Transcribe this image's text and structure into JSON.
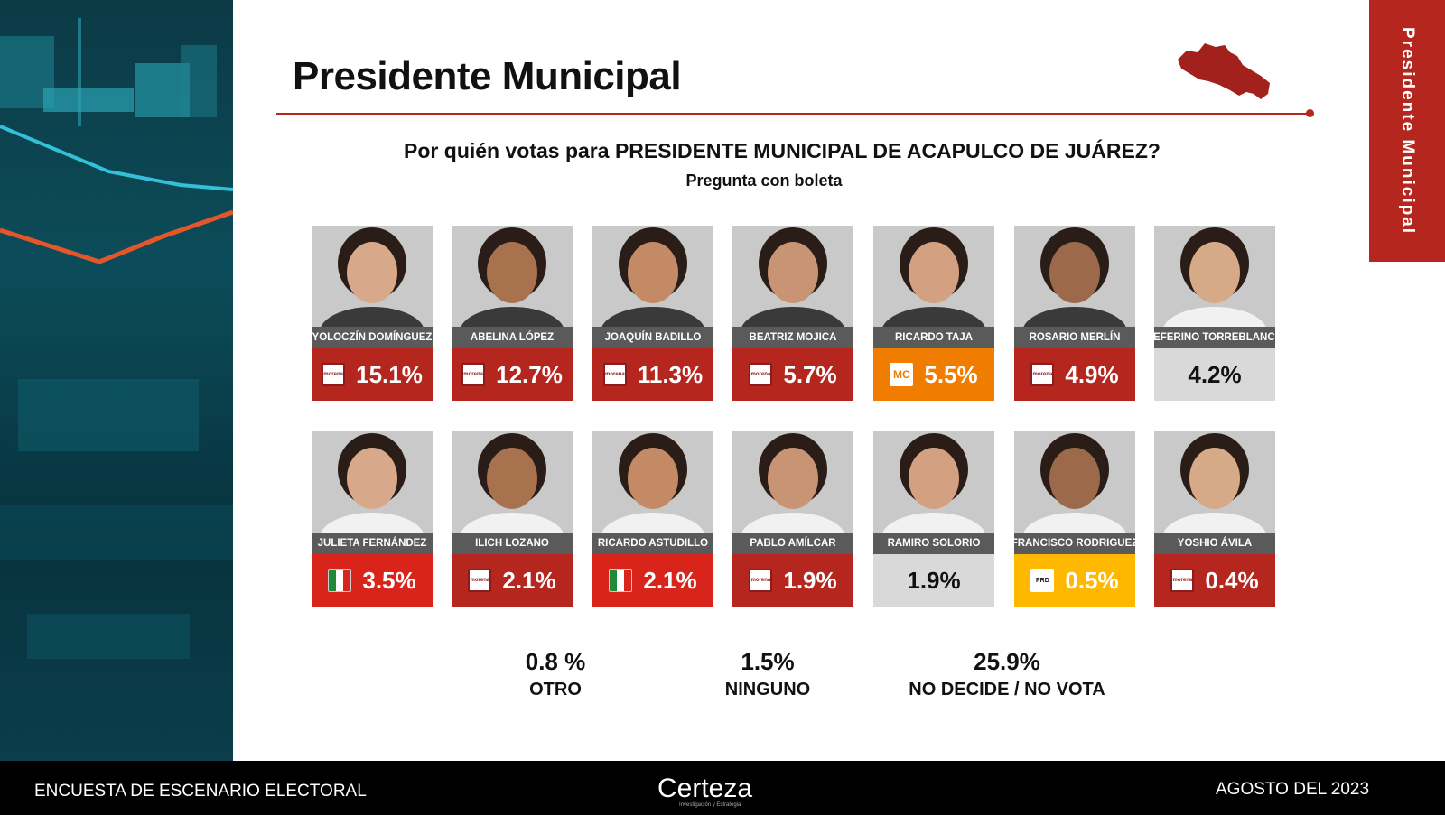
{
  "title": "Presidente Municipal",
  "side_tab": "Presidente Municipal",
  "question": "Por quién votas  para  PRESIDENTE MUNICIPAL DE ACAPULCO DE JUÁREZ?",
  "question_sub": "Pregunta con boleta",
  "colors": {
    "morena": "#b5261e",
    "pri": "#d9241c",
    "mc": "#f07d00",
    "prd": "#ffb800",
    "none": "#d9d9d9",
    "accent": "#b5261e"
  },
  "chart_data": {
    "type": "bar",
    "title": "Por quién votas  para  PRESIDENTE MUNICIPAL DE ACAPULCO DE JUÁREZ?",
    "unit": "%",
    "candidates": [
      {
        "name": "YOLOCZÍN DOMÍNGUEZ",
        "value": 15.1,
        "label": "15.1%",
        "party": "morena"
      },
      {
        "name": "ABELINA LÓPEZ",
        "value": 12.7,
        "label": "12.7%",
        "party": "morena"
      },
      {
        "name": "JOAQUÍN BADILLO",
        "value": 11.3,
        "label": "11.3%",
        "party": "morena"
      },
      {
        "name": "BEATRIZ MOJICA",
        "value": 5.7,
        "label": "5.7%",
        "party": "morena"
      },
      {
        "name": "RICARDO TAJA",
        "value": 5.5,
        "label": "5.5%",
        "party": "mc"
      },
      {
        "name": "ROSARIO MERLÍN",
        "value": 4.9,
        "label": "4.9%",
        "party": "morena"
      },
      {
        "name": "ZEFERINO TORREBLANCA",
        "value": 4.2,
        "label": "4.2%",
        "party": "none"
      },
      {
        "name": "JULIETA FERNÁNDEZ",
        "value": 3.5,
        "label": "3.5%",
        "party": "pri"
      },
      {
        "name": "ILICH LOZANO",
        "value": 2.1,
        "label": "2.1%",
        "party": "morena"
      },
      {
        "name": "RICARDO ASTUDILLO",
        "value": 2.1,
        "label": "2.1%",
        "party": "pri"
      },
      {
        "name": "PABLO AMÍLCAR",
        "value": 1.9,
        "label": "1.9%",
        "party": "morena"
      },
      {
        "name": "RAMIRO  SOLORIO",
        "value": 1.9,
        "label": "1.9%",
        "party": "none"
      },
      {
        "name": "FRANCISCO RODRIGUEZ",
        "value": 0.5,
        "label": "0.5%",
        "party": "prd"
      },
      {
        "name": "YOSHIO ÁVILA",
        "value": 0.4,
        "label": "0.4%",
        "party": "morena"
      }
    ],
    "extras": [
      {
        "value": 0.8,
        "label": "0.8 %",
        "category": "OTRO"
      },
      {
        "value": 1.5,
        "label": "1.5%",
        "category": "NINGUNO"
      },
      {
        "value": 25.9,
        "label": "25.9%",
        "category": "NO DECIDE / NO VOTA"
      }
    ]
  },
  "party_logos": {
    "morena": "morena",
    "mc": "MC",
    "pri": "PRI",
    "prd": "PRD",
    "none": ""
  },
  "footer": {
    "left": "ENCUESTA DE ESCENARIO ELECTORAL",
    "brand": "Certeza",
    "brand_sub": "Investigación y Estrategia",
    "right": "AGOSTO DEL 2023"
  }
}
